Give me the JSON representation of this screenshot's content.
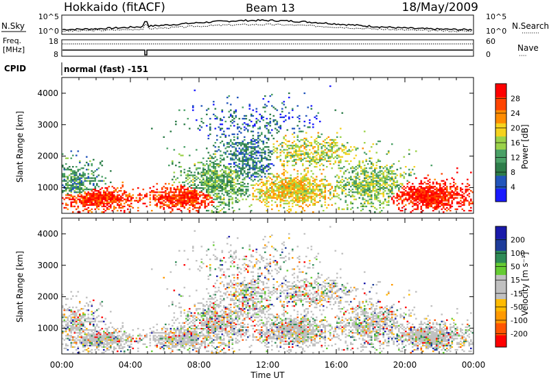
{
  "header": {
    "station": "Hokkaido (fitACF)",
    "beam": "Beam 13",
    "date": "18/May/2009"
  },
  "summary_panel": {
    "nsky_label": "N.Sky",
    "nsearch_label": "N.Search",
    "nsearch_marker": "·········",
    "nsky_ticks": [
      "10^5",
      "10^0"
    ],
    "nsearch_ticks": [
      "10^5",
      "10^0"
    ],
    "freq_label_1": "Freq.",
    "freq_label_2": "[MHz]",
    "freq_ticks": [
      "18",
      "8"
    ],
    "nave_label": "Nave",
    "nave_marker": "····",
    "nave_ticks": [
      "60",
      "0"
    ],
    "cpid_label": "CPID",
    "cpid_value": "normal (fast) -151"
  },
  "colors": {
    "power_scale": [
      "#1a1aff",
      "#2255bb",
      "#2e7d4a",
      "#4aa066",
      "#9bd24a",
      "#f5d21e",
      "#ff8c00",
      "#ff4400",
      "#ff0000"
    ],
    "velocity_scale": [
      "#ff0000",
      "#ff5500",
      "#ff9900",
      "#ffbb00",
      "#c0c0c0",
      "#c0c0c0",
      "#66cc33",
      "#2e8b57",
      "#1e3c9a",
      "#1a1aaa"
    ]
  },
  "chart_data": [
    {
      "type": "heatmap",
      "panel": "power",
      "xlabel": "",
      "ylabel": "Slant Range [km]",
      "xlim": [
        "00:00",
        "24:00"
      ],
      "ylim": [
        180,
        4500
      ],
      "y_ticks": [
        "4000",
        "3000",
        "2000",
        "1000"
      ],
      "colorbar": {
        "label": "Power [dB]",
        "ticks": [
          "28",
          "24",
          "20",
          "16",
          "12",
          "8",
          "4"
        ],
        "range": [
          0,
          30
        ]
      }
    },
    {
      "type": "heatmap",
      "panel": "velocity",
      "xlabel": "Time UT",
      "ylabel": "Slant Range [km]",
      "xlim": [
        "00:00",
        "24:00"
      ],
      "ylim": [
        180,
        4500
      ],
      "x_ticks": [
        "00:00",
        "04:00",
        "08:00",
        "12:00",
        "16:00",
        "20:00",
        "00:00"
      ],
      "y_ticks": [
        "4000",
        "3000",
        "2000",
        "1000"
      ],
      "colorbar": {
        "label": "Velocity [m s⁻¹]",
        "ticks": [
          "200",
          "100",
          "50",
          "15",
          "-15",
          "-50",
          "-100",
          "-200"
        ],
        "range": [
          -250,
          250
        ]
      }
    }
  ]
}
